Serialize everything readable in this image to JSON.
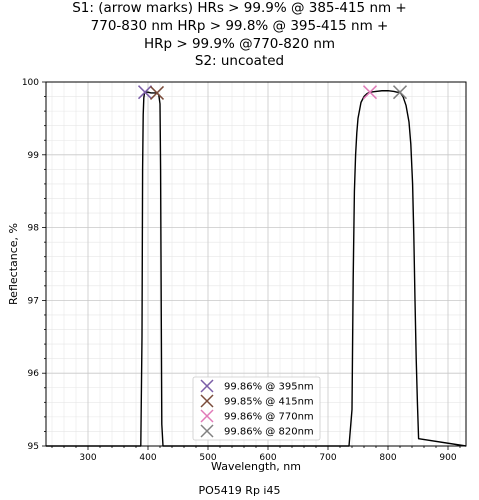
{
  "title_lines": [
    "S1: (arrow marks) HRs > 99.9% @ 385-415 nm +",
    "770-830 nm HRp > 99.8% @ 395-415 nm +",
    "HRp > 99.9% @770-820 nm",
    "S2: uncoated"
  ],
  "footer": "PO5419 Rp i45",
  "chart_data": {
    "type": "line",
    "title": "S1: (arrow marks) HRs > 99.9% @ 385-415 nm + 770-830 nm HRp > 99.8% @ 395-415 nm + HRp > 99.9% @770-820 nm S2: uncoated",
    "xlabel": "Wavelength, nm",
    "ylabel": "Reflectance, %",
    "xlim": [
      230,
      930
    ],
    "ylim": [
      95,
      100
    ],
    "x_ticks": [
      300,
      400,
      500,
      600,
      700,
      800,
      900
    ],
    "y_ticks": [
      95,
      96,
      97,
      98,
      99,
      100
    ],
    "grid": true,
    "series": [
      {
        "color": "#000000",
        "x": [
          230,
          388,
          390,
          391,
          392,
          393,
          394,
          395,
          397,
          400,
          405,
          410,
          415,
          418,
          420,
          421,
          422,
          423,
          425,
          735,
          740,
          742,
          744,
          746,
          748,
          750,
          755,
          760,
          765,
          770,
          780,
          790,
          800,
          810,
          815,
          820,
          825,
          830,
          835,
          838,
          841,
          843,
          845,
          847,
          849,
          851,
          930
        ],
        "y": [
          95,
          95,
          96.5,
          98.8,
          99.55,
          99.78,
          99.84,
          99.86,
          99.86,
          99.86,
          99.85,
          99.85,
          99.85,
          99.82,
          99.7,
          98.8,
          97.0,
          95.3,
          95,
          95,
          95.5,
          97.3,
          98.5,
          99.0,
          99.3,
          99.5,
          99.72,
          99.8,
          99.84,
          99.86,
          99.87,
          99.88,
          99.88,
          99.87,
          99.86,
          99.86,
          99.8,
          99.68,
          99.45,
          99.15,
          98.6,
          97.9,
          97.0,
          96.2,
          95.6,
          95.1,
          95
        ]
      }
    ],
    "markers": [
      {
        "x": 395,
        "y": 99.86,
        "label": "99.86% @ 395nm",
        "color": "#7b5ea7"
      },
      {
        "x": 415,
        "y": 99.85,
        "label": "99.85% @ 415nm",
        "color": "#7a4b3a"
      },
      {
        "x": 770,
        "y": 99.86,
        "label": "99.86% @ 770nm",
        "color": "#e07ab8"
      },
      {
        "x": 820,
        "y": 99.86,
        "label": "99.86% @ 820nm",
        "color": "#808080"
      }
    ],
    "legend_position": "lower-center"
  }
}
